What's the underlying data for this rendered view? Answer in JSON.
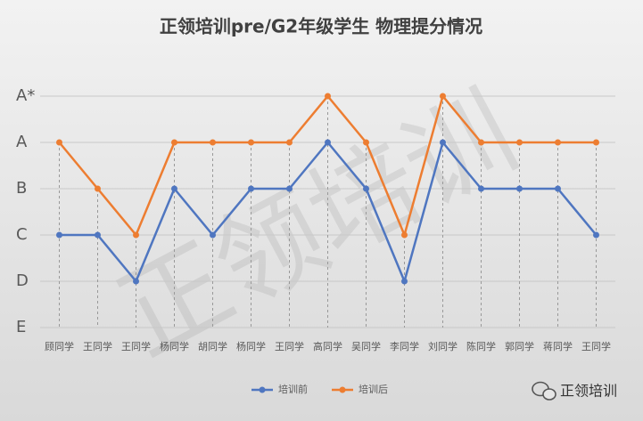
{
  "chart_data": {
    "type": "line",
    "title": "正领培训pre/G2年级学生 物理提分情况",
    "categories": [
      "顾同学",
      "王同学",
      "王同学",
      "杨同学",
      "胡同学",
      "杨同学",
      "王同学",
      "高同学",
      "吴同学",
      "李同学",
      "刘同学",
      "陈同学",
      "郭同学",
      "蒋同学",
      "王同学"
    ],
    "series": [
      {
        "name": "培训前",
        "color": "#4f76c0",
        "values": [
          2,
          2,
          1,
          3,
          2,
          3,
          3,
          4,
          3,
          1,
          4,
          3,
          3,
          3,
          2
        ]
      },
      {
        "name": "培训后",
        "color": "#ed7d31",
        "values": [
          4,
          3,
          2,
          4,
          4,
          4,
          4,
          5,
          4,
          2,
          5,
          4,
          4,
          4,
          4
        ]
      }
    ],
    "ylim": [
      0,
      5
    ],
    "yticks": [
      {
        "value": 0,
        "label": "E"
      },
      {
        "value": 1,
        "label": "D"
      },
      {
        "value": 2,
        "label": "C"
      },
      {
        "value": 3,
        "label": "B"
      },
      {
        "value": 4,
        "label": "A"
      },
      {
        "value": 5,
        "label": "A*"
      }
    ],
    "grid": true,
    "legend": "bottom",
    "watermark": "正领培训",
    "brand": "正领培训"
  }
}
